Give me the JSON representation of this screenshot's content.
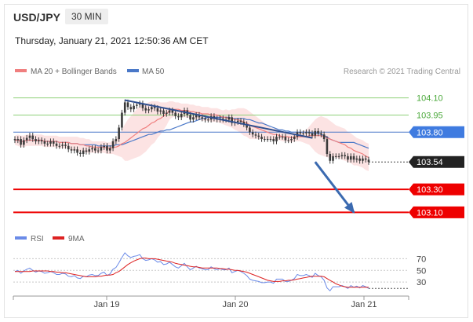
{
  "header": {
    "symbol": "USD/JPY",
    "timeframe": "30 MIN",
    "datetime": "Thursday, January 21, 2021 12:50:36 AM CET"
  },
  "legend": {
    "ma_bb_label": "MA 20 + Bollinger Bands",
    "ma50_label": "MA 50",
    "credit": "Research © 2021 Trading Central"
  },
  "colors": {
    "ma20": "#f07f7f",
    "bb_fill": "#fbd9d9",
    "ma50": "#4a78c8",
    "trend": "#2f4f8f",
    "support": "#ee0000",
    "resistance_green": "#8fd07a",
    "current_price": "#222222",
    "arrow": "#3b6ab0",
    "rsi": "#6b8be8",
    "rsi_ma": "#dd2222",
    "candle": "#3a3a3a"
  },
  "chart_data": [
    {
      "type": "candlestick",
      "x_ticks": [
        "Jan 19",
        "Jan 20",
        "Jan 21"
      ],
      "ylim": [
        103.02,
        104.2
      ],
      "levels": [
        {
          "value": 104.1,
          "label": "104.10",
          "kind": "resistance-text"
        },
        {
          "value": 103.95,
          "label": "103.95",
          "kind": "resistance-text"
        },
        {
          "value": 103.8,
          "label": "103.80",
          "kind": "pivot"
        },
        {
          "value": 103.54,
          "label": "103.54",
          "kind": "current-price"
        },
        {
          "value": 103.3,
          "label": "103.30",
          "kind": "support"
        },
        {
          "value": 103.1,
          "label": "103.10",
          "kind": "support"
        }
      ],
      "close": [
        103.73,
        103.74,
        103.69,
        103.73,
        103.75,
        103.77,
        103.74,
        103.72,
        103.73,
        103.72,
        103.7,
        103.7,
        103.72,
        103.7,
        103.68,
        103.68,
        103.69,
        103.68,
        103.65,
        103.64,
        103.65,
        103.62,
        103.61,
        103.64,
        103.63,
        103.65,
        103.66,
        103.64,
        103.64,
        103.67,
        103.68,
        103.64,
        103.66,
        103.72,
        103.74,
        103.84,
        103.97,
        104.06,
        104.02,
        104.0,
        104.03,
        104.04,
        104.05,
        104.01,
        103.99,
        104.0,
        104.02,
        104.01,
        103.98,
        103.99,
        103.96,
        103.97,
        103.99,
        103.97,
        103.94,
        103.93,
        103.96,
        103.99,
        103.95,
        103.91,
        103.93,
        103.95,
        103.93,
        103.92,
        103.91,
        103.91,
        103.94,
        103.92,
        103.91,
        103.92,
        103.91,
        103.91,
        103.93,
        103.88,
        103.89,
        103.9,
        103.89,
        103.87,
        103.84,
        103.8,
        103.78,
        103.77,
        103.76,
        103.74,
        103.74,
        103.74,
        103.74,
        103.72,
        103.76,
        103.76,
        103.76,
        103.73,
        103.73,
        103.74,
        103.76,
        103.8,
        103.79,
        103.79,
        103.8,
        103.79,
        103.77,
        103.81,
        103.79,
        103.78,
        103.74,
        103.61,
        103.55,
        103.59,
        103.59,
        103.59,
        103.6,
        103.59,
        103.56,
        103.59,
        103.56,
        103.57,
        103.55,
        103.57,
        103.56,
        103.54
      ],
      "ma50": [
        103.73,
        103.73,
        103.72,
        103.72,
        103.73,
        103.73,
        103.73,
        103.73,
        103.73,
        103.73,
        103.72,
        103.72,
        103.72,
        103.72,
        103.72,
        103.71,
        103.71,
        103.71,
        103.71,
        103.7,
        103.7,
        103.7,
        103.69,
        103.69,
        103.69,
        103.69,
        103.69,
        103.69,
        103.68,
        103.68,
        103.68,
        103.68,
        103.68,
        103.68,
        103.69,
        103.69,
        103.69,
        103.7,
        103.71,
        103.72,
        103.73,
        103.74,
        103.75,
        103.76,
        103.77,
        103.78,
        103.78,
        103.79,
        103.8,
        103.81,
        103.81,
        103.82,
        103.82,
        103.83,
        103.84,
        103.85,
        103.86,
        103.87,
        103.88,
        103.89,
        103.89,
        103.9,
        103.91,
        103.92,
        103.92,
        103.93,
        103.93,
        103.93,
        103.93,
        103.93,
        103.93,
        103.93,
        103.93,
        103.92,
        103.92,
        103.92,
        103.92,
        103.92,
        103.91,
        103.91,
        103.9,
        103.89,
        103.88,
        103.88,
        103.87,
        103.86,
        103.85,
        103.84,
        103.83,
        103.82,
        103.82,
        103.81,
        103.81,
        103.8,
        103.8,
        103.8,
        103.8,
        103.8,
        103.8,
        103.8,
        103.79,
        103.79,
        103.79,
        103.78,
        103.77,
        103.76,
        103.74,
        103.73,
        103.72,
        103.71,
        103.71,
        103.71,
        103.71,
        103.71,
        103.71,
        103.7,
        103.69,
        103.68,
        103.67,
        103.66
      ],
      "ma20": [
        103.73,
        103.73,
        103.72,
        103.72,
        103.73,
        103.73,
        103.73,
        103.73,
        103.73,
        103.73,
        103.72,
        103.72,
        103.72,
        103.72,
        103.72,
        103.71,
        103.71,
        103.71,
        103.71,
        103.7,
        103.7,
        103.7,
        103.69,
        103.69,
        103.68,
        103.68,
        103.67,
        103.67,
        103.67,
        103.67,
        103.67,
        103.66,
        103.66,
        103.67,
        103.67,
        103.68,
        103.7,
        103.71,
        103.73,
        103.75,
        103.77,
        103.79,
        103.81,
        103.83,
        103.84,
        103.86,
        103.88,
        103.89,
        103.91,
        103.92,
        103.94,
        103.96,
        103.99,
        104.0,
        104.0,
        104.0,
        103.99,
        103.99,
        103.99,
        103.98,
        103.98,
        103.97,
        103.97,
        103.96,
        103.96,
        103.96,
        103.95,
        103.95,
        103.95,
        103.94,
        103.93,
        103.93,
        103.92,
        103.92,
        103.91,
        103.91,
        103.9,
        103.89,
        103.88,
        103.86,
        103.85,
        103.84,
        103.83,
        103.82,
        103.81,
        103.8,
        103.79,
        103.78,
        103.78,
        103.77,
        103.76,
        103.76,
        103.76,
        103.75,
        103.76,
        103.76,
        103.76,
        103.76,
        103.76,
        103.77,
        103.77,
        103.77,
        103.77,
        103.77,
        103.76,
        103.75,
        103.74,
        103.73,
        103.72,
        103.71,
        103.7,
        103.69,
        103.67,
        103.66,
        103.64,
        103.63,
        103.62,
        103.61,
        103.59,
        103.58
      ],
      "bb_half_width": [
        0.04,
        0.05,
        0.05,
        0.05,
        0.05,
        0.05,
        0.05,
        0.05,
        0.05,
        0.05,
        0.05,
        0.05,
        0.05,
        0.05,
        0.05,
        0.05,
        0.05,
        0.05,
        0.05,
        0.06,
        0.06,
        0.06,
        0.06,
        0.06,
        0.06,
        0.06,
        0.05,
        0.05,
        0.05,
        0.05,
        0.05,
        0.05,
        0.05,
        0.06,
        0.07,
        0.09,
        0.12,
        0.16,
        0.18,
        0.19,
        0.2,
        0.21,
        0.22,
        0.22,
        0.21,
        0.2,
        0.19,
        0.18,
        0.16,
        0.14,
        0.12,
        0.1,
        0.08,
        0.07,
        0.06,
        0.06,
        0.06,
        0.06,
        0.06,
        0.06,
        0.06,
        0.06,
        0.06,
        0.06,
        0.06,
        0.06,
        0.06,
        0.06,
        0.06,
        0.06,
        0.06,
        0.07,
        0.07,
        0.08,
        0.09,
        0.1,
        0.11,
        0.12,
        0.12,
        0.12,
        0.11,
        0.1,
        0.09,
        0.08,
        0.07,
        0.06,
        0.05,
        0.05,
        0.05,
        0.04,
        0.04,
        0.04,
        0.04,
        0.04,
        0.04,
        0.04,
        0.04,
        0.05,
        0.06,
        0.08,
        0.11,
        0.14,
        0.16,
        0.17,
        0.17,
        0.17,
        0.16,
        0.15,
        0.14,
        0.14,
        0.14,
        0.14,
        0.13,
        0.13,
        0.13,
        0.12,
        0.12,
        0.12,
        0.12,
        0.12
      ],
      "trendline": [
        [
          37,
          104.08
        ],
        [
          100,
          103.75
        ]
      ],
      "projection_arrow": [
        [
          101,
          103.54
        ],
        [
          114,
          103.1
        ]
      ]
    },
    {
      "type": "line",
      "series": [
        {
          "name": "RSI",
          "values": [
            48,
            50,
            45,
            49,
            52,
            54,
            50,
            47,
            49,
            48,
            45,
            46,
            48,
            46,
            43,
            43,
            45,
            44,
            40,
            39,
            41,
            37,
            36,
            40,
            39,
            42,
            43,
            41,
            41,
            45,
            47,
            41,
            44,
            52,
            55,
            63,
            72,
            80,
            75,
            72,
            74,
            75,
            77,
            70,
            67,
            68,
            70,
            68,
            64,
            65,
            60,
            61,
            64,
            60,
            56,
            54,
            58,
            62,
            56,
            51,
            54,
            57,
            54,
            53,
            51,
            51,
            56,
            53,
            51,
            53,
            51,
            51,
            54,
            46,
            48,
            50,
            48,
            45,
            41,
            35,
            33,
            32,
            31,
            29,
            29,
            30,
            30,
            28,
            35,
            35,
            35,
            31,
            31,
            33,
            36,
            43,
            41,
            41,
            43,
            41,
            38,
            45,
            41,
            39,
            33,
            20,
            15,
            22,
            22,
            22,
            24,
            22,
            19,
            24,
            21,
            23,
            20,
            24,
            22,
            19
          ]
        },
        {
          "name": "9MA",
          "values": [
            48,
            48,
            48,
            48,
            48,
            48,
            49,
            49,
            49,
            49,
            49,
            49,
            48,
            48,
            47,
            47,
            46,
            46,
            45,
            44,
            43,
            42,
            41,
            40,
            39,
            39,
            39,
            39,
            40,
            40,
            41,
            42,
            42,
            43,
            46,
            48,
            52,
            56,
            60,
            63,
            66,
            68,
            70,
            71,
            71,
            70,
            70,
            70,
            69,
            68,
            67,
            66,
            65,
            64,
            62,
            61,
            60,
            59,
            58,
            57,
            56,
            56,
            55,
            54,
            54,
            54,
            54,
            54,
            54,
            53,
            53,
            52,
            52,
            51,
            50,
            50,
            49,
            48,
            47,
            45,
            43,
            41,
            39,
            37,
            35,
            33,
            32,
            31,
            31,
            31,
            32,
            32,
            33,
            33,
            34,
            35,
            36,
            37,
            38,
            39,
            40,
            40,
            40,
            40,
            39,
            36,
            33,
            30,
            27,
            25,
            23,
            22,
            21,
            21,
            21,
            21,
            21,
            21,
            21,
            21
          ]
        }
      ],
      "y_ticks": [
        70,
        50,
        30
      ],
      "ylim": [
        10,
        88
      ]
    }
  ]
}
